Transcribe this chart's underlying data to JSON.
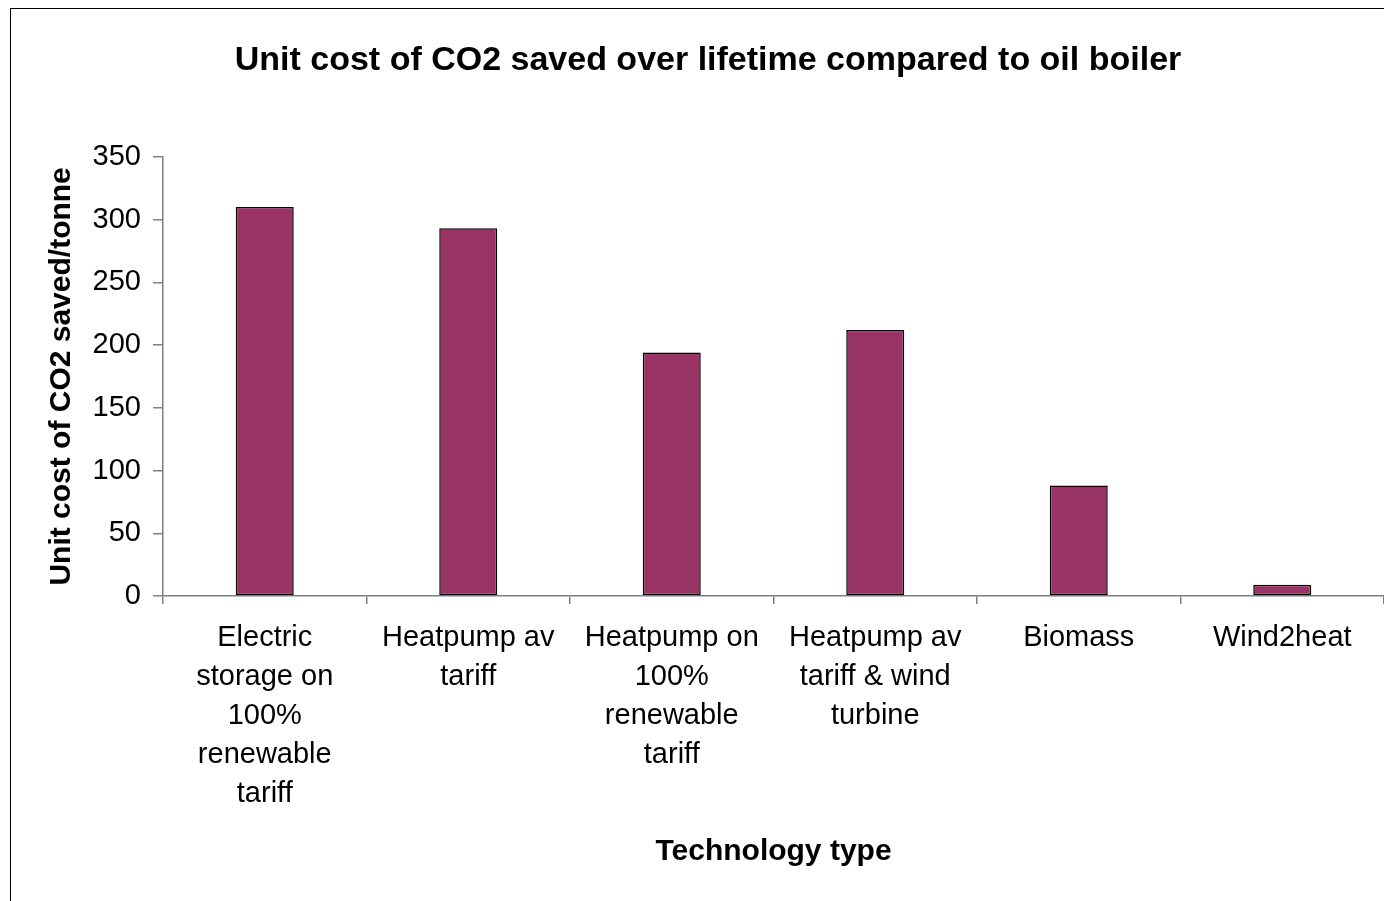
{
  "chart_data": {
    "type": "bar",
    "title": "Unit cost of CO2 saved over lifetime compared to oil boiler",
    "xlabel": "Technology type",
    "ylabel": "Unit cost of CO2 saved/tonne",
    "categories": [
      "Electric storage on 100% renewable tariff",
      "Heatpump av tariff",
      "Heatpump on 100% renewable tariff",
      "Heatpump av tariff & wind turbine",
      "Biomass",
      "Wind2heat"
    ],
    "values": [
      310,
      293,
      194,
      212,
      88,
      9
    ],
    "color": "#993366",
    "ylim": [
      0,
      350
    ],
    "yticks": [
      0,
      50,
      100,
      150,
      200,
      250,
      300,
      350
    ]
  }
}
